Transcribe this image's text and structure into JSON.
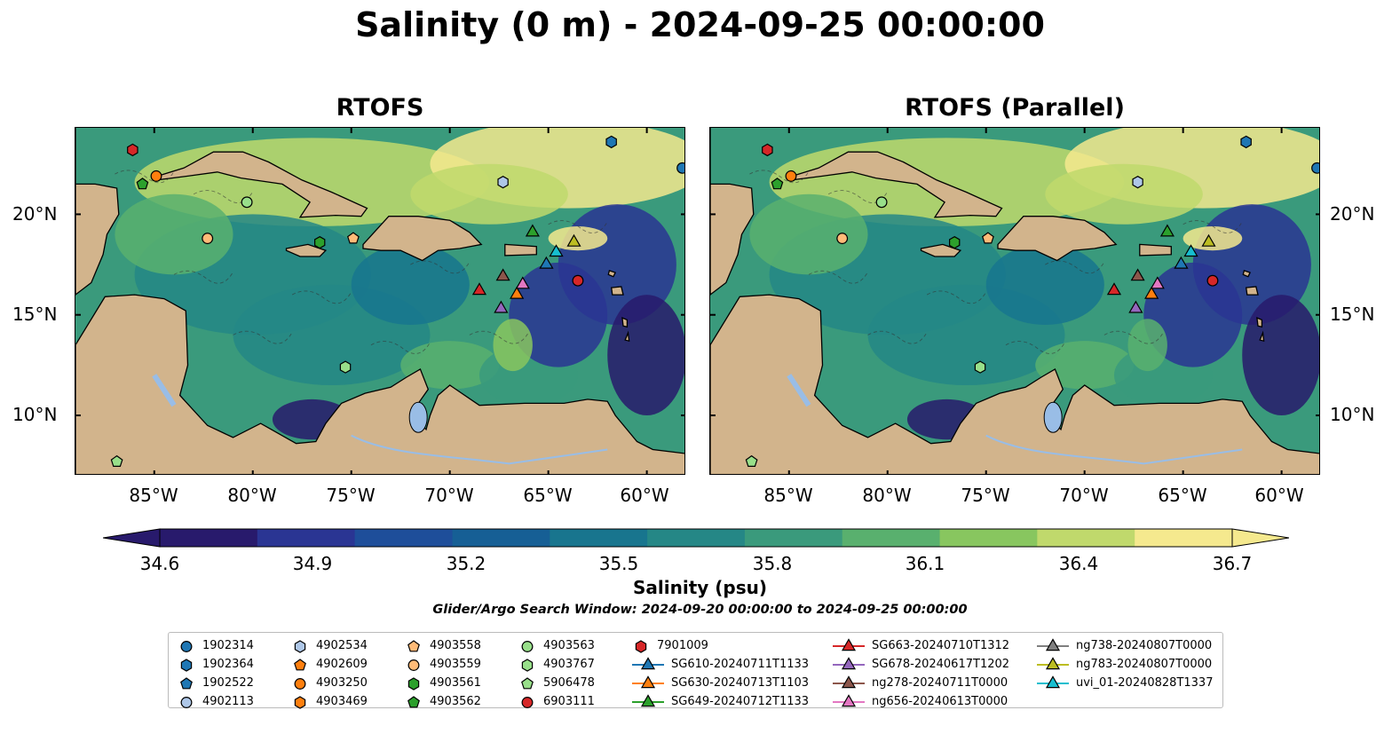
{
  "title": "Salinity (0 m) - 2024-09-25 00:00:00",
  "panels": [
    {
      "title": "RTOFS"
    },
    {
      "title": "RTOFS (Parallel)"
    }
  ],
  "lat_ticks": [
    "20°N",
    "15°N",
    "10°N"
  ],
  "lon_ticks": [
    "85°W",
    "80°W",
    "75°W",
    "70°W",
    "65°W",
    "60°W"
  ],
  "colorbar": {
    "label": "Salinity (psu)",
    "min": 34.6,
    "max": 36.7,
    "ticks": [
      "34.6",
      "34.9",
      "35.2",
      "35.5",
      "35.8",
      "36.1",
      "36.4",
      "36.7"
    ],
    "colors": [
      "#281a6c",
      "#2a3593",
      "#1e4e9a",
      "#165f95",
      "#18758e",
      "#258786",
      "#3a9a7c",
      "#59b06e",
      "#88c65f",
      "#c0d96c",
      "#f5e98e"
    ],
    "land": "#d2b48c",
    "lakes": "#99bde6"
  },
  "search_window": "Glider/Argo Search Window: 2024-09-20 00:00:00 to 2024-09-25 00:00:00",
  "chart_data": {
    "type": "map",
    "projection": "PlateCarree",
    "extent": {
      "lon": [
        -89,
        -58
      ],
      "lat": [
        7,
        24.3
      ]
    },
    "variable": "Salinity (psu)",
    "depth": "0 m",
    "platforms": [
      {
        "id": "1902314",
        "marker": "circle",
        "color": "#1f77b4",
        "lon": -58.2,
        "lat": 22.3
      },
      {
        "id": "1902364",
        "marker": "hexagon",
        "color": "#1f77b4",
        "lon": -61.8,
        "lat": 23.6
      },
      {
        "id": "1902522",
        "marker": "pentagon",
        "color": "#1f77b4",
        "lon": null,
        "lat": null
      },
      {
        "id": "4902113",
        "marker": "circle",
        "color": "#aec7e8",
        "lon": null,
        "lat": null
      },
      {
        "id": "4902534",
        "marker": "hexagon",
        "color": "#aec7e8",
        "lon": -67.3,
        "lat": 21.6
      },
      {
        "id": "4902609",
        "marker": "pentagon",
        "color": "#ff7f0e",
        "lon": null,
        "lat": null
      },
      {
        "id": "4903250",
        "marker": "circle",
        "color": "#ff7f0e",
        "lon": -84.9,
        "lat": 21.9
      },
      {
        "id": "4903469",
        "marker": "hexagon",
        "color": "#ff7f0e",
        "lon": null,
        "lat": null
      },
      {
        "id": "4903558",
        "marker": "pentagon",
        "color": "#ffbb78",
        "lon": -74.9,
        "lat": 18.8
      },
      {
        "id": "4903559",
        "marker": "circle",
        "color": "#ffbb78",
        "lon": -82.3,
        "lat": 18.8
      },
      {
        "id": "4903561",
        "marker": "hexagon",
        "color": "#2ca02c",
        "lon": -76.6,
        "lat": 18.6
      },
      {
        "id": "4903562",
        "marker": "pentagon",
        "color": "#2ca02c",
        "lon": -85.6,
        "lat": 21.5
      },
      {
        "id": "4903563",
        "marker": "circle",
        "color": "#98df8a",
        "lon": -80.3,
        "lat": 20.6
      },
      {
        "id": "4903767",
        "marker": "hexagon",
        "color": "#98df8a",
        "lon": -75.3,
        "lat": 12.4
      },
      {
        "id": "5906478",
        "marker": "pentagon",
        "color": "#98df8a",
        "lon": -86.9,
        "lat": 7.7
      },
      {
        "id": "6903111",
        "marker": "circle",
        "color": "#d62728",
        "lon": -63.5,
        "lat": 16.7
      },
      {
        "id": "7901009",
        "marker": "hexagon",
        "color": "#d62728",
        "lon": -86.1,
        "lat": 23.2
      },
      {
        "id": "SG610-20240711T1133",
        "marker": "triangle",
        "color": "#1f77b4",
        "lon": -65.1,
        "lat": 17.5
      },
      {
        "id": "SG630-20240713T1103",
        "marker": "triangle",
        "color": "#ff7f0e",
        "lon": -66.6,
        "lat": 16.0
      },
      {
        "id": "SG649-20240712T1133",
        "marker": "triangle",
        "color": "#2ca02c",
        "lon": -65.8,
        "lat": 19.1
      },
      {
        "id": "SG663-20240710T1312",
        "marker": "triangle",
        "color": "#d62728",
        "lon": -68.5,
        "lat": 16.2
      },
      {
        "id": "SG678-20240617T1202",
        "marker": "triangle",
        "color": "#9467bd",
        "lon": -67.4,
        "lat": 15.3
      },
      {
        "id": "ng278-20240711T0000",
        "marker": "triangle",
        "color": "#8c564b",
        "lon": -67.3,
        "lat": 16.9
      },
      {
        "id": "ng656-20240613T0000",
        "marker": "triangle",
        "color": "#e377c2",
        "lon": -66.3,
        "lat": 16.5
      },
      {
        "id": "ng738-20240807T0000",
        "marker": "triangle",
        "color": "#7f7f7f",
        "lon": null,
        "lat": null
      },
      {
        "id": "ng783-20240807T0000",
        "marker": "triangle",
        "color": "#bcbd22",
        "lon": -63.7,
        "lat": 18.6
      },
      {
        "id": "uvi_01-20240828T1337",
        "marker": "triangle",
        "color": "#17becf",
        "lon": -64.6,
        "lat": 18.1
      }
    ]
  }
}
